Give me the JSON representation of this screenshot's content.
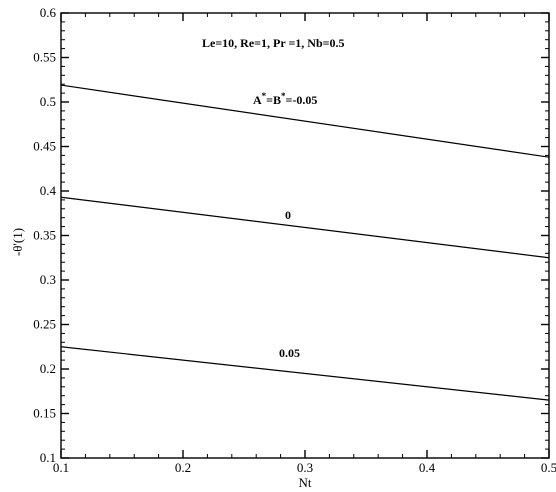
{
  "chart_data": {
    "type": "line",
    "title": "",
    "xlabel": "Nt",
    "ylabel": "-θ'(1)",
    "xlim": [
      0.1,
      0.5
    ],
    "ylim": [
      0.1,
      0.6
    ],
    "x_ticks": [
      "0.1",
      "0.2",
      "0.3",
      "0.4",
      "0.5"
    ],
    "y_ticks": [
      "0.1",
      "0.15",
      "0.2",
      "0.25",
      "0.3",
      "0.35",
      "0.4",
      "0.45",
      "0.5",
      "0.55",
      "0.6"
    ],
    "grid": false,
    "params_label": "Le=10, Re=1, Pr =1, Nb=0.5",
    "series": [
      {
        "name": "A*=B*=-0.05",
        "x": [
          0.1,
          0.5
        ],
        "y": [
          0.519,
          0.438
        ]
      },
      {
        "name": "0",
        "x": [
          0.1,
          0.5
        ],
        "y": [
          0.393,
          0.325
        ]
      },
      {
        "name": "0.05",
        "x": [
          0.1,
          0.5
        ],
        "y": [
          0.225,
          0.165
        ]
      }
    ],
    "annotations": {
      "a_label": "A",
      "a_sup": "*",
      "b_label": "=B",
      "b_sup": "*",
      "value_neg": "=-0.05",
      "zero": "0",
      "pos": "0.05"
    },
    "line_color": "#000000"
  }
}
